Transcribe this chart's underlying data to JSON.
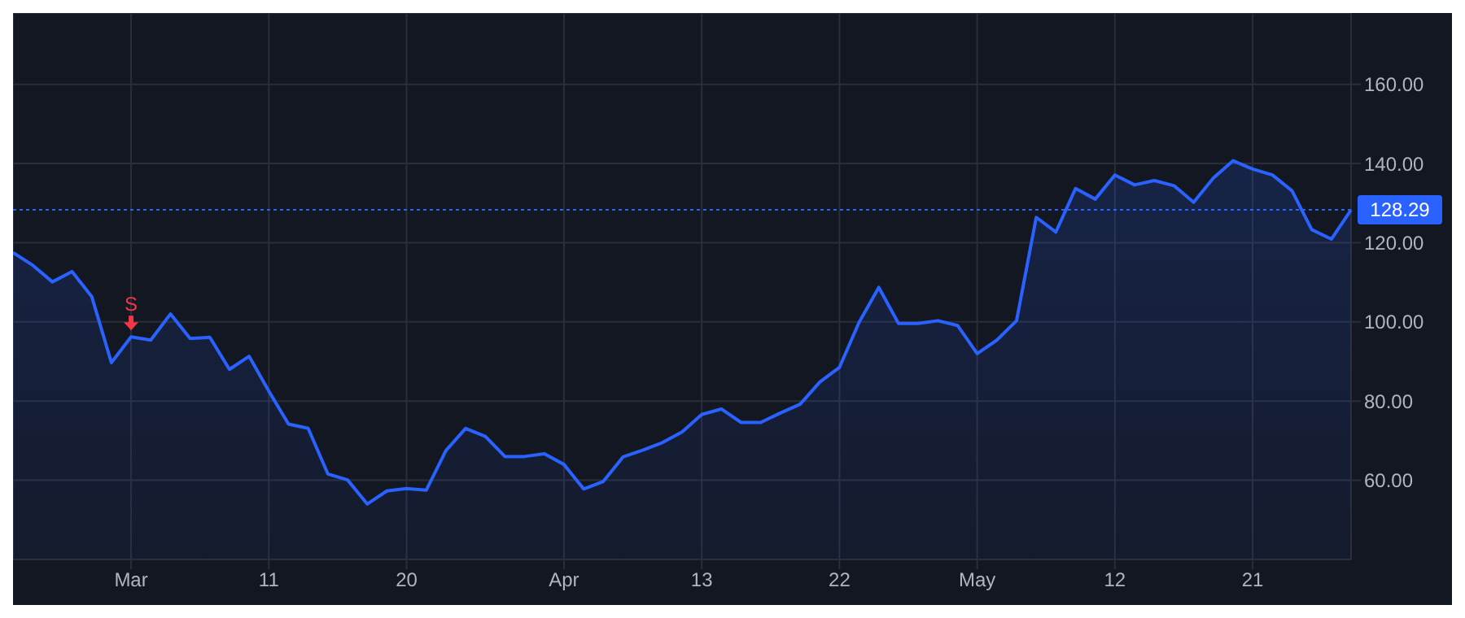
{
  "chart_data": {
    "type": "area",
    "categories": [
      null,
      null,
      null,
      null,
      null,
      null,
      "Mar",
      null,
      null,
      null,
      null,
      null,
      null,
      "11",
      null,
      null,
      null,
      null,
      null,
      null,
      "20",
      null,
      null,
      null,
      null,
      null,
      null,
      null,
      "Apr",
      null,
      null,
      null,
      null,
      null,
      null,
      "13",
      null,
      null,
      null,
      null,
      null,
      null,
      "22",
      null,
      null,
      null,
      null,
      null,
      null,
      "May",
      null,
      null,
      null,
      null,
      null,
      null,
      "12",
      null,
      null,
      null,
      null,
      null,
      null,
      "21",
      null,
      null,
      null,
      null,
      null
    ],
    "series": [
      {
        "color": "#2962ff",
        "values": [
          117.5,
          114.3,
          110.1,
          112.7,
          106.4,
          89.7,
          96.2,
          95.4,
          102.0,
          95.8,
          96.1,
          88.0,
          91.3,
          82.5,
          74.2,
          73.1,
          61.6,
          60.1,
          54.0,
          57.3,
          57.9,
          57.5,
          67.5,
          73.1,
          71.1,
          66.0,
          66.0,
          66.7,
          64.0,
          57.8,
          59.7,
          65.9,
          67.6,
          69.5,
          72.2,
          76.6,
          78.0,
          74.6,
          74.6,
          77.0,
          79.2,
          84.8,
          88.5,
          99.9,
          108.7,
          99.6,
          99.6,
          100.3,
          99.1,
          92.0,
          95.4,
          100.3,
          126.4,
          122.7,
          133.7,
          131.0,
          137.1,
          134.6,
          135.7,
          134.4,
          130.2,
          136.3,
          140.7,
          138.6,
          137.1,
          133.1,
          123.3,
          120.9,
          128.29
        ]
      }
    ],
    "ylim": [
      40,
      178
    ],
    "yticks": [
      {
        "value": 60,
        "label": "60.00"
      },
      {
        "value": 80,
        "label": "80.00"
      },
      {
        "value": 100,
        "label": "100.00"
      },
      {
        "value": 120,
        "label": "120.00"
      },
      {
        "value": 140,
        "label": "140.00"
      },
      {
        "value": 160,
        "label": "160.00"
      }
    ],
    "grid": true,
    "ref_lines": [
      {
        "axis": "y",
        "value": 128.29,
        "label": "128.29",
        "color": "#2962ff",
        "line_style": "dotted"
      }
    ],
    "annotations": [
      {
        "text": "S",
        "x": "Mar",
        "y": 96.2
      }
    ]
  }
}
